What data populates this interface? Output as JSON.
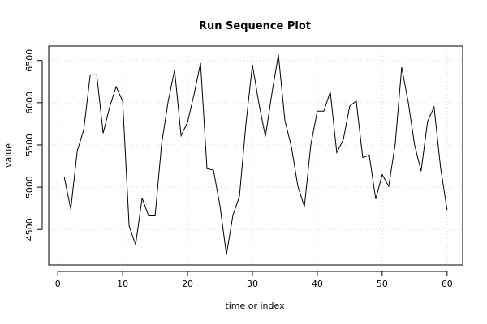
{
  "chart_data": {
    "type": "line",
    "title": "Run Sequence Plot",
    "xlabel": "time or index",
    "ylabel": "value",
    "xlim": [
      -1.4,
      62.4
    ],
    "ylim": [
      4080,
      6670
    ],
    "x_ticks": [
      0,
      10,
      20,
      30,
      40,
      50,
      60
    ],
    "y_ticks": [
      4500,
      5000,
      5500,
      6000,
      6500
    ],
    "grid": true,
    "colors": {
      "line": "#000000",
      "grid": "#d8d8d8",
      "frame": "#000000"
    },
    "series": [
      {
        "x": [
          1,
          2,
          3,
          4,
          5,
          6,
          7,
          8,
          9,
          10,
          11,
          12,
          13,
          14,
          15,
          16,
          17,
          18,
          19,
          20,
          21,
          22,
          23,
          24,
          25,
          26,
          27,
          28,
          29,
          30,
          31,
          32,
          33,
          34,
          35,
          36,
          37,
          38,
          39,
          40,
          41,
          42,
          43,
          44,
          45,
          46,
          47,
          48,
          49,
          50,
          51,
          52,
          53,
          54,
          55,
          56,
          57,
          58,
          59,
          60
        ],
        "values": [
          5120,
          4740,
          5430,
          5680,
          6330,
          6330,
          5640,
          5950,
          6190,
          6020,
          4540,
          4320,
          4870,
          4660,
          4660,
          5510,
          6010,
          6390,
          5610,
          5770,
          6100,
          6470,
          5220,
          5200,
          4780,
          4200,
          4670,
          4890,
          5750,
          6450,
          5990,
          5600,
          6110,
          6570,
          5790,
          5480,
          5010,
          4770,
          5500,
          5900,
          5900,
          6130,
          5410,
          5560,
          5960,
          6020,
          5350,
          5380,
          4860,
          5150,
          5010,
          5510,
          6420,
          6010,
          5500,
          5190,
          5780,
          5950,
          5230,
          4730
        ]
      }
    ]
  }
}
